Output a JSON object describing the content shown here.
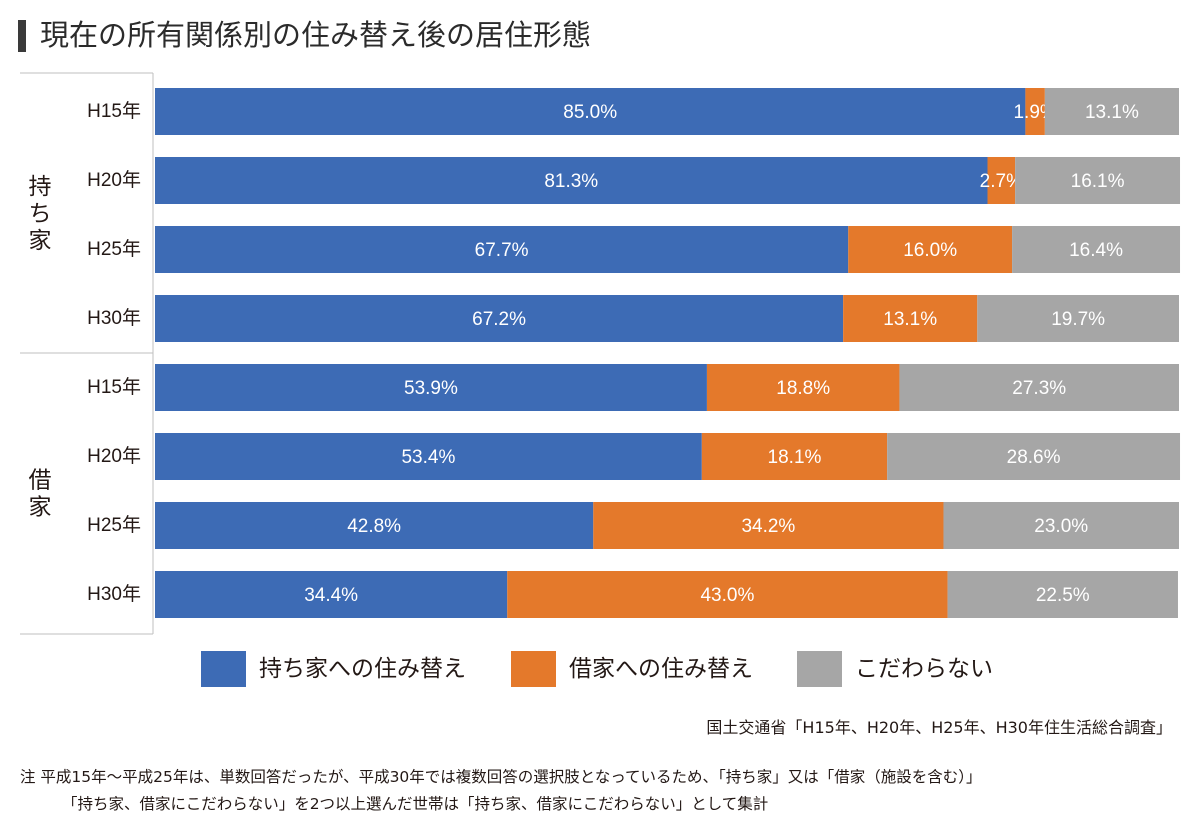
{
  "title": "現在の所有関係別の住み替え後の居住形態",
  "chart_data": {
    "type": "bar",
    "orientation": "horizontal",
    "stacked": "percent",
    "groups": [
      {
        "name": "持ち家",
        "categories": [
          "H15年",
          "H20年",
          "H25年",
          "H30年"
        ]
      },
      {
        "name": "借家",
        "categories": [
          "H15年",
          "H20年",
          "H25年",
          "H30年"
        ]
      }
    ],
    "series": [
      {
        "name": "持ち家への住み替え",
        "color": "#3d6bb5",
        "values": [
          85.0,
          81.3,
          67.7,
          67.2,
          53.9,
          53.4,
          42.8,
          34.4
        ],
        "labels": [
          "85.0%",
          "81.3%",
          "67.7%",
          "67.2%",
          "53.9%",
          "53.4%",
          "42.8%",
          "34.4%"
        ]
      },
      {
        "name": "借家への住み替え",
        "color": "#e4792b",
        "values": [
          1.9,
          2.7,
          16.0,
          13.1,
          18.8,
          18.1,
          34.2,
          43.0
        ],
        "labels": [
          "1.9%",
          "2.7%",
          "16.0%",
          "13.1%",
          "18.8%",
          "18.1%",
          "34.2%",
          "43.0%"
        ]
      },
      {
        "name": "こだわらない",
        "color": "#a6a6a6",
        "values": [
          13.1,
          16.1,
          16.4,
          19.7,
          27.3,
          28.6,
          23.0,
          22.5
        ],
        "labels": [
          "13.1%",
          "16.1%",
          "16.4%",
          "19.7%",
          "27.3%",
          "28.6%",
          "23.0%",
          "22.5%"
        ]
      }
    ],
    "xlim": [
      0,
      100
    ],
    "grid": false,
    "legend_position": "bottom"
  },
  "source": "国土交通省「H15年、H20年、H25年、H30年住生活総合調査」",
  "note": {
    "line1": "注  平成15年～平成25年は、単数回答だったが、平成30年では複数回答の選択肢となっているため、「持ち家」又は「借家（施設を含む）」",
    "line2": "「持ち家、借家にこだわらない」を2つ以上選んだ世帯は「持ち家、借家にこだわらない」として集計"
  }
}
